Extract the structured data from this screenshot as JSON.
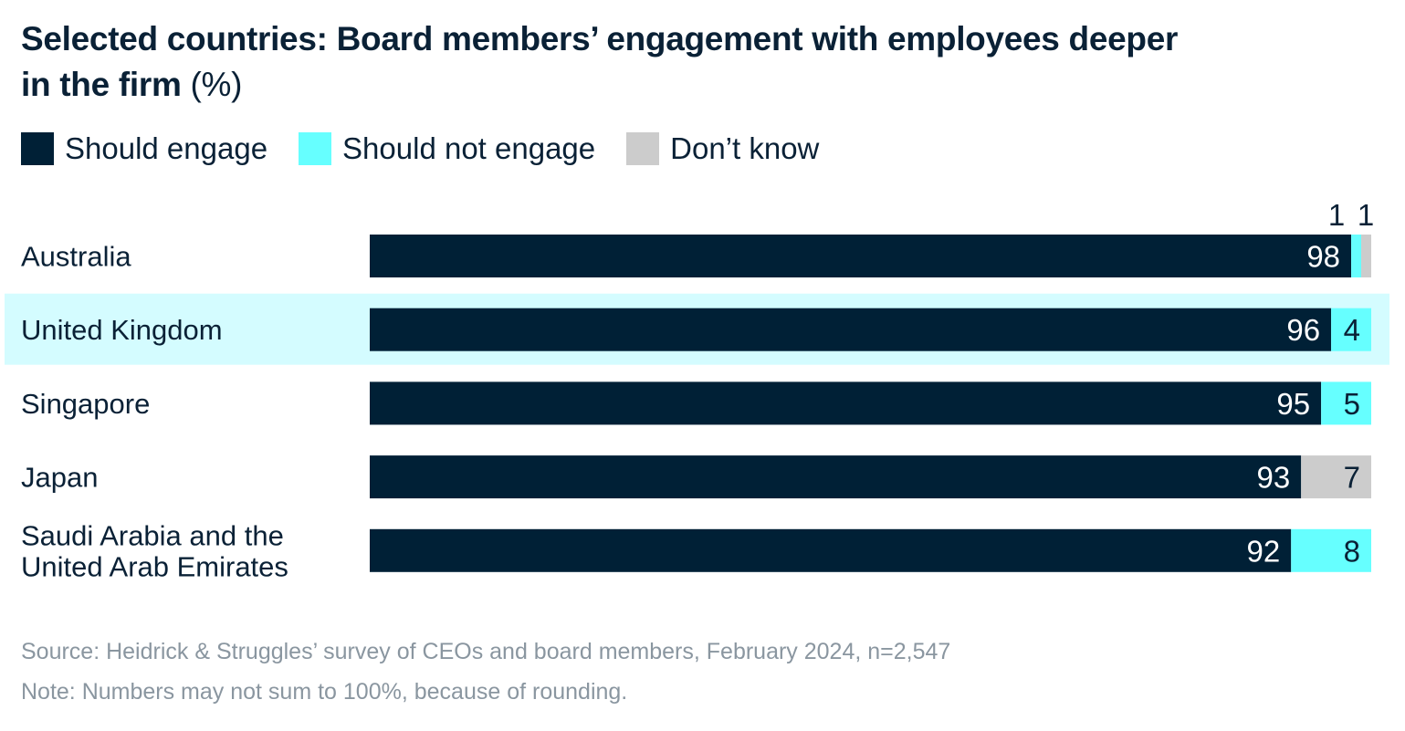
{
  "title": "Selected countries: Board members’ engagement with employees deeper in the firm",
  "title_unit": "(%)",
  "colors": {
    "should_engage": "#002036",
    "should_not_engage": "#66FFFF",
    "dont_know": "#CCCCCC",
    "highlight": "#D4FCFF",
    "text": "#0a2136"
  },
  "chart_data": {
    "type": "bar",
    "orientation": "horizontal",
    "stacked": true,
    "title": "Selected countries: Board members’ engagement with employees deeper in the firm (%)",
    "categories": [
      "Australia",
      "United Kingdom",
      "Singapore",
      "Japan",
      "Saudi Arabia and the United Arab Emirates"
    ],
    "highlighted_category": "United Kingdom",
    "legend_position": "top-left",
    "grid": false,
    "series": [
      {
        "name": "Should engage",
        "values": [
          98,
          96,
          95,
          93,
          92
        ]
      },
      {
        "name": "Should not engage",
        "values": [
          1,
          4,
          5,
          0,
          8
        ]
      },
      {
        "name": "Don’t know",
        "values": [
          1,
          0,
          0,
          7,
          0
        ]
      }
    ]
  },
  "legend": [
    "Should engage",
    "Should not engage",
    "Don’t know"
  ],
  "category_lines": [
    [
      "Australia"
    ],
    [
      "United Kingdom"
    ],
    [
      "Singapore"
    ],
    [
      "Japan"
    ],
    [
      "Saudi Arabia and the",
      "United Arab Emirates"
    ]
  ],
  "source": "Source: Heidrick & Struggles’ survey of CEOs and board members, February 2024, n=2,547",
  "note": "Note: Numbers may not sum to 100%, because of rounding."
}
